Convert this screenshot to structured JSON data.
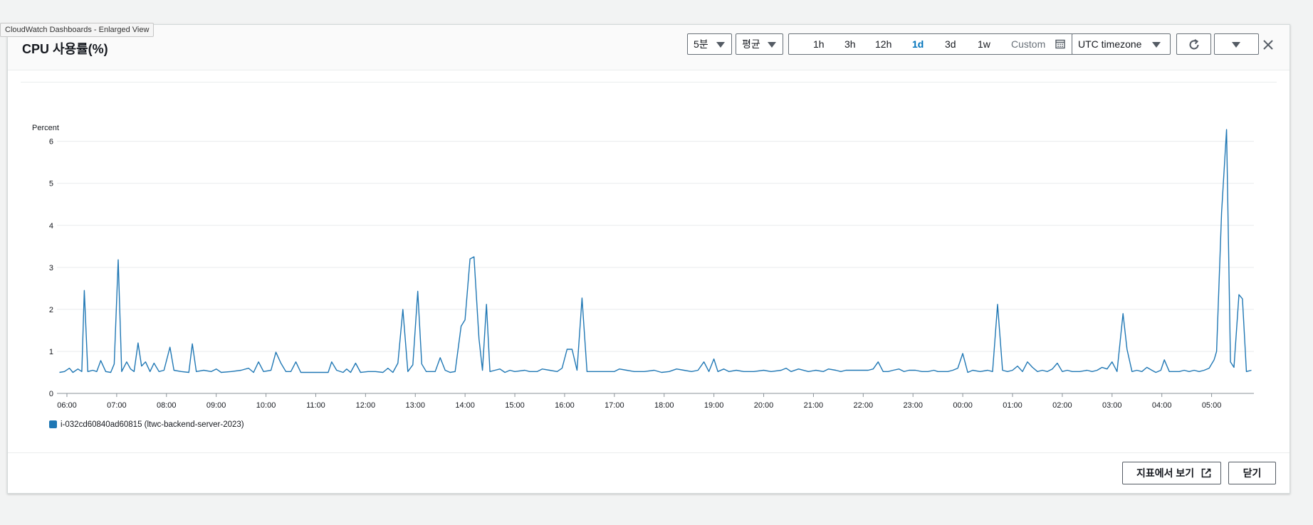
{
  "tooltip": "CloudWatch Dashboards - Enlarged View",
  "title": "CPU 사용률(%)",
  "controls": {
    "period": "5분",
    "statistic": "평균",
    "time_ranges": [
      "1h",
      "3h",
      "12h",
      "1d",
      "3d",
      "1w"
    ],
    "active_range": "1d",
    "custom_label": "Custom",
    "timezone": "UTC timezone"
  },
  "icons": {
    "calendar": "calendar-icon",
    "refresh": "refresh-icon",
    "more": "chevron-down-icon",
    "close": "close-icon",
    "external": "external-link-icon"
  },
  "footer": {
    "view_in_metrics": "지표에서 보기",
    "close": "닫기"
  },
  "chart_data": {
    "type": "line",
    "ylabel": "Percent",
    "ylim": [
      0,
      6.4
    ],
    "yticks": [
      0,
      1,
      2,
      3,
      4,
      5,
      6
    ],
    "grid": true,
    "x_tick_labels": [
      "06:00",
      "07:00",
      "08:00",
      "09:00",
      "10:00",
      "11:00",
      "12:00",
      "13:00",
      "14:00",
      "15:00",
      "16:00",
      "17:00",
      "18:00",
      "19:00",
      "20:00",
      "21:00",
      "22:00",
      "23:00",
      "00:00",
      "01:00",
      "02:00",
      "03:00",
      "04:00",
      "05:00"
    ],
    "x_ticks_hours": [
      0,
      1,
      2,
      3,
      4,
      5,
      6,
      7,
      8,
      9,
      10,
      11,
      12,
      13,
      14,
      15,
      16,
      17,
      18,
      19,
      20,
      21,
      22,
      23
    ],
    "x_range_hours": [
      -0.2,
      23.85
    ],
    "legend_position": "bottom-left",
    "series": [
      {
        "name": "i-032cd60840ad60815 (ltwc-backend-server-2023)",
        "color": "#1f77b4",
        "points": [
          [
            -0.15,
            0.5
          ],
          [
            -0.05,
            0.52
          ],
          [
            0.05,
            0.6
          ],
          [
            0.12,
            0.5
          ],
          [
            0.22,
            0.58
          ],
          [
            0.3,
            0.52
          ],
          [
            0.35,
            2.45
          ],
          [
            0.42,
            0.52
          ],
          [
            0.52,
            0.55
          ],
          [
            0.6,
            0.52
          ],
          [
            0.68,
            0.78
          ],
          [
            0.78,
            0.52
          ],
          [
            0.88,
            0.5
          ],
          [
            0.95,
            0.7
          ],
          [
            1.03,
            3.18
          ],
          [
            1.1,
            0.52
          ],
          [
            1.2,
            0.75
          ],
          [
            1.28,
            0.58
          ],
          [
            1.35,
            0.52
          ],
          [
            1.43,
            1.2
          ],
          [
            1.5,
            0.65
          ],
          [
            1.58,
            0.75
          ],
          [
            1.67,
            0.52
          ],
          [
            1.75,
            0.72
          ],
          [
            1.85,
            0.52
          ],
          [
            1.95,
            0.55
          ],
          [
            2.07,
            1.1
          ],
          [
            2.15,
            0.55
          ],
          [
            2.3,
            0.52
          ],
          [
            2.45,
            0.5
          ],
          [
            2.52,
            1.18
          ],
          [
            2.6,
            0.52
          ],
          [
            2.75,
            0.55
          ],
          [
            2.9,
            0.52
          ],
          [
            3.0,
            0.58
          ],
          [
            3.1,
            0.5
          ],
          [
            3.3,
            0.52
          ],
          [
            3.5,
            0.55
          ],
          [
            3.65,
            0.6
          ],
          [
            3.75,
            0.5
          ],
          [
            3.85,
            0.75
          ],
          [
            3.95,
            0.52
          ],
          [
            4.1,
            0.55
          ],
          [
            4.2,
            0.98
          ],
          [
            4.3,
            0.72
          ],
          [
            4.4,
            0.52
          ],
          [
            4.5,
            0.52
          ],
          [
            4.6,
            0.75
          ],
          [
            4.7,
            0.5
          ],
          [
            5.0,
            0.5
          ],
          [
            5.25,
            0.5
          ],
          [
            5.32,
            0.75
          ],
          [
            5.42,
            0.55
          ],
          [
            5.55,
            0.5
          ],
          [
            5.62,
            0.58
          ],
          [
            5.7,
            0.5
          ],
          [
            5.8,
            0.72
          ],
          [
            5.9,
            0.5
          ],
          [
            6.05,
            0.52
          ],
          [
            6.2,
            0.52
          ],
          [
            6.35,
            0.5
          ],
          [
            6.45,
            0.6
          ],
          [
            6.55,
            0.5
          ],
          [
            6.65,
            0.72
          ],
          [
            6.75,
            2.0
          ],
          [
            6.85,
            0.52
          ],
          [
            6.95,
            0.68
          ],
          [
            7.05,
            2.43
          ],
          [
            7.13,
            0.7
          ],
          [
            7.22,
            0.52
          ],
          [
            7.4,
            0.52
          ],
          [
            7.5,
            0.85
          ],
          [
            7.6,
            0.55
          ],
          [
            7.7,
            0.5
          ],
          [
            7.8,
            0.52
          ],
          [
            7.92,
            1.6
          ],
          [
            8.0,
            1.75
          ],
          [
            8.1,
            3.2
          ],
          [
            8.18,
            3.25
          ],
          [
            8.28,
            1.3
          ],
          [
            8.35,
            0.55
          ],
          [
            8.43,
            2.12
          ],
          [
            8.5,
            0.52
          ],
          [
            8.6,
            0.55
          ],
          [
            8.7,
            0.58
          ],
          [
            8.8,
            0.5
          ],
          [
            8.9,
            0.55
          ],
          [
            9.0,
            0.52
          ],
          [
            9.2,
            0.55
          ],
          [
            9.3,
            0.52
          ],
          [
            9.45,
            0.52
          ],
          [
            9.55,
            0.58
          ],
          [
            9.7,
            0.55
          ],
          [
            9.85,
            0.52
          ],
          [
            9.95,
            0.6
          ],
          [
            10.05,
            1.05
          ],
          [
            10.15,
            1.05
          ],
          [
            10.25,
            0.55
          ],
          [
            10.35,
            2.27
          ],
          [
            10.45,
            0.52
          ],
          [
            10.8,
            0.52
          ],
          [
            11.0,
            0.52
          ],
          [
            11.1,
            0.58
          ],
          [
            11.25,
            0.55
          ],
          [
            11.4,
            0.52
          ],
          [
            11.6,
            0.52
          ],
          [
            11.8,
            0.55
          ],
          [
            11.95,
            0.5
          ],
          [
            12.1,
            0.52
          ],
          [
            12.25,
            0.58
          ],
          [
            12.4,
            0.55
          ],
          [
            12.55,
            0.52
          ],
          [
            12.68,
            0.55
          ],
          [
            12.8,
            0.75
          ],
          [
            12.9,
            0.52
          ],
          [
            13.0,
            0.82
          ],
          [
            13.08,
            0.52
          ],
          [
            13.2,
            0.58
          ],
          [
            13.3,
            0.52
          ],
          [
            13.45,
            0.55
          ],
          [
            13.6,
            0.52
          ],
          [
            13.8,
            0.52
          ],
          [
            14.0,
            0.55
          ],
          [
            14.15,
            0.52
          ],
          [
            14.35,
            0.55
          ],
          [
            14.45,
            0.6
          ],
          [
            14.55,
            0.52
          ],
          [
            14.7,
            0.58
          ],
          [
            14.9,
            0.52
          ],
          [
            15.05,
            0.55
          ],
          [
            15.2,
            0.52
          ],
          [
            15.3,
            0.58
          ],
          [
            15.45,
            0.55
          ],
          [
            15.55,
            0.52
          ],
          [
            15.65,
            0.55
          ],
          [
            15.8,
            0.55
          ],
          [
            15.95,
            0.55
          ],
          [
            16.1,
            0.55
          ],
          [
            16.2,
            0.58
          ],
          [
            16.3,
            0.75
          ],
          [
            16.4,
            0.52
          ],
          [
            16.5,
            0.52
          ],
          [
            16.6,
            0.55
          ],
          [
            16.72,
            0.58
          ],
          [
            16.82,
            0.52
          ],
          [
            16.92,
            0.55
          ],
          [
            17.05,
            0.55
          ],
          [
            17.18,
            0.52
          ],
          [
            17.3,
            0.52
          ],
          [
            17.42,
            0.55
          ],
          [
            17.5,
            0.52
          ],
          [
            17.6,
            0.52
          ],
          [
            17.7,
            0.52
          ],
          [
            17.8,
            0.55
          ],
          [
            17.9,
            0.6
          ],
          [
            18.0,
            0.95
          ],
          [
            18.1,
            0.5
          ],
          [
            18.2,
            0.55
          ],
          [
            18.35,
            0.52
          ],
          [
            18.5,
            0.55
          ],
          [
            18.6,
            0.52
          ],
          [
            18.7,
            2.12
          ],
          [
            18.8,
            0.55
          ],
          [
            18.9,
            0.52
          ],
          [
            19.0,
            0.55
          ],
          [
            19.1,
            0.65
          ],
          [
            19.2,
            0.52
          ],
          [
            19.3,
            0.75
          ],
          [
            19.4,
            0.62
          ],
          [
            19.5,
            0.52
          ],
          [
            19.6,
            0.55
          ],
          [
            19.7,
            0.52
          ],
          [
            19.8,
            0.58
          ],
          [
            19.9,
            0.72
          ],
          [
            20.0,
            0.52
          ],
          [
            20.1,
            0.55
          ],
          [
            20.2,
            0.52
          ],
          [
            20.35,
            0.52
          ],
          [
            20.5,
            0.55
          ],
          [
            20.6,
            0.52
          ],
          [
            20.7,
            0.55
          ],
          [
            20.8,
            0.62
          ],
          [
            20.9,
            0.58
          ],
          [
            21.0,
            0.75
          ],
          [
            21.1,
            0.52
          ],
          [
            21.22,
            1.9
          ],
          [
            21.3,
            1.05
          ],
          [
            21.4,
            0.52
          ],
          [
            21.5,
            0.55
          ],
          [
            21.6,
            0.52
          ],
          [
            21.7,
            0.62
          ],
          [
            21.8,
            0.55
          ],
          [
            21.88,
            0.5
          ],
          [
            21.98,
            0.55
          ],
          [
            22.05,
            0.8
          ],
          [
            22.15,
            0.52
          ],
          [
            22.25,
            0.52
          ],
          [
            22.35,
            0.52
          ],
          [
            22.45,
            0.55
          ],
          [
            22.55,
            0.52
          ],
          [
            22.65,
            0.55
          ],
          [
            22.75,
            0.52
          ],
          [
            22.85,
            0.55
          ],
          [
            22.95,
            0.6
          ],
          [
            23.05,
            0.8
          ],
          [
            23.1,
            1.0
          ],
          [
            23.2,
            4.3
          ],
          [
            23.3,
            6.28
          ],
          [
            23.38,
            0.75
          ],
          [
            23.45,
            0.62
          ],
          [
            23.55,
            2.35
          ],
          [
            23.62,
            2.25
          ],
          [
            23.7,
            0.52
          ],
          [
            23.8,
            0.55
          ]
        ]
      }
    ]
  }
}
